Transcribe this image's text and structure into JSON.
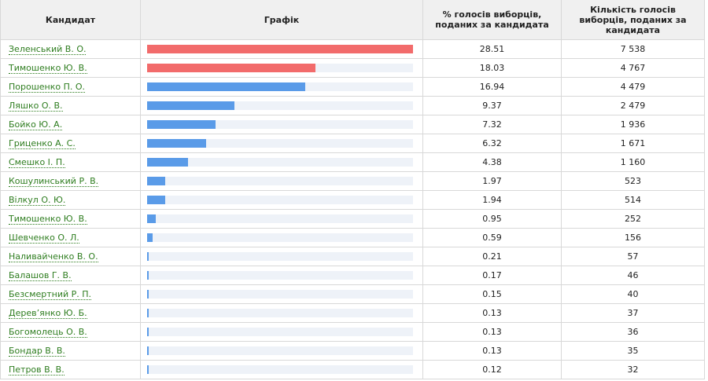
{
  "header": {
    "candidate": "Кандидат",
    "chart": "Графік",
    "percent": "% голосів виборців, поданих за кандидата",
    "count": "Кількість голосів виборців, поданих за кандидата"
  },
  "colors": {
    "leader": "#f26b6b",
    "others": "#5a9be8",
    "track": "#eef2f8",
    "link": "#2e7d1f"
  },
  "chart_data": {
    "type": "bar",
    "orientation": "horizontal",
    "categories": [
      "Зеленський В. О.",
      "Тимошенко Ю. В.",
      "Порошенко П. О.",
      "Ляшко О. В.",
      "Бойко Ю. А.",
      "Гриценко А. С.",
      "Смешко І. П.",
      "Кошулинський Р. В.",
      "Вілкул О. Ю.",
      "Тимошенко Ю. В.",
      "Шевченко О. Л.",
      "Наливайченко В. О.",
      "Балашов Г. В.",
      "Безсмертний Р. П.",
      "Дерев’янко Ю. Б.",
      "Богомолець О. В.",
      "Бондар В. В.",
      "Петров В. В."
    ],
    "values": [
      28.51,
      18.03,
      16.94,
      9.37,
      7.32,
      6.32,
      4.38,
      1.97,
      1.94,
      0.95,
      0.59,
      0.21,
      0.17,
      0.15,
      0.13,
      0.13,
      0.13,
      0.12
    ],
    "xlim": [
      0,
      28.51
    ]
  },
  "rows": [
    {
      "name": "Зеленський В. О.",
      "percent": "28.51",
      "count": "7 538",
      "color": "#f26b6b"
    },
    {
      "name": "Тимошенко Ю. В.",
      "percent": "18.03",
      "count": "4 767",
      "color": "#f26b6b"
    },
    {
      "name": "Порошенко П. О.",
      "percent": "16.94",
      "count": "4 479",
      "color": "#5a9be8"
    },
    {
      "name": "Ляшко О. В.",
      "percent": "9.37",
      "count": "2 479",
      "color": "#5a9be8"
    },
    {
      "name": "Бойко Ю. А.",
      "percent": "7.32",
      "count": "1 936",
      "color": "#5a9be8"
    },
    {
      "name": "Гриценко А. С.",
      "percent": "6.32",
      "count": "1 671",
      "color": "#5a9be8"
    },
    {
      "name": "Смешко І. П.",
      "percent": "4.38",
      "count": "1 160",
      "color": "#5a9be8"
    },
    {
      "name": "Кошулинський Р. В.",
      "percent": "1.97",
      "count": "523",
      "color": "#5a9be8"
    },
    {
      "name": "Вілкул О. Ю.",
      "percent": "1.94",
      "count": "514",
      "color": "#5a9be8"
    },
    {
      "name": "Тимошенко Ю. В.",
      "percent": "0.95",
      "count": "252",
      "color": "#5a9be8"
    },
    {
      "name": "Шевченко О. Л.",
      "percent": "0.59",
      "count": "156",
      "color": "#5a9be8"
    },
    {
      "name": "Наливайченко В. О.",
      "percent": "0.21",
      "count": "57",
      "color": "#5a9be8"
    },
    {
      "name": "Балашов Г. В.",
      "percent": "0.17",
      "count": "46",
      "color": "#5a9be8"
    },
    {
      "name": "Безсмертний Р. П.",
      "percent": "0.15",
      "count": "40",
      "color": "#5a9be8"
    },
    {
      "name": "Дерев’янко Ю. Б.",
      "percent": "0.13",
      "count": "37",
      "color": "#5a9be8"
    },
    {
      "name": "Богомолець О. В.",
      "percent": "0.13",
      "count": "36",
      "color": "#5a9be8"
    },
    {
      "name": "Бондар В. В.",
      "percent": "0.13",
      "count": "35",
      "color": "#5a9be8"
    },
    {
      "name": "Петров В. В.",
      "percent": "0.12",
      "count": "32",
      "color": "#5a9be8"
    }
  ]
}
